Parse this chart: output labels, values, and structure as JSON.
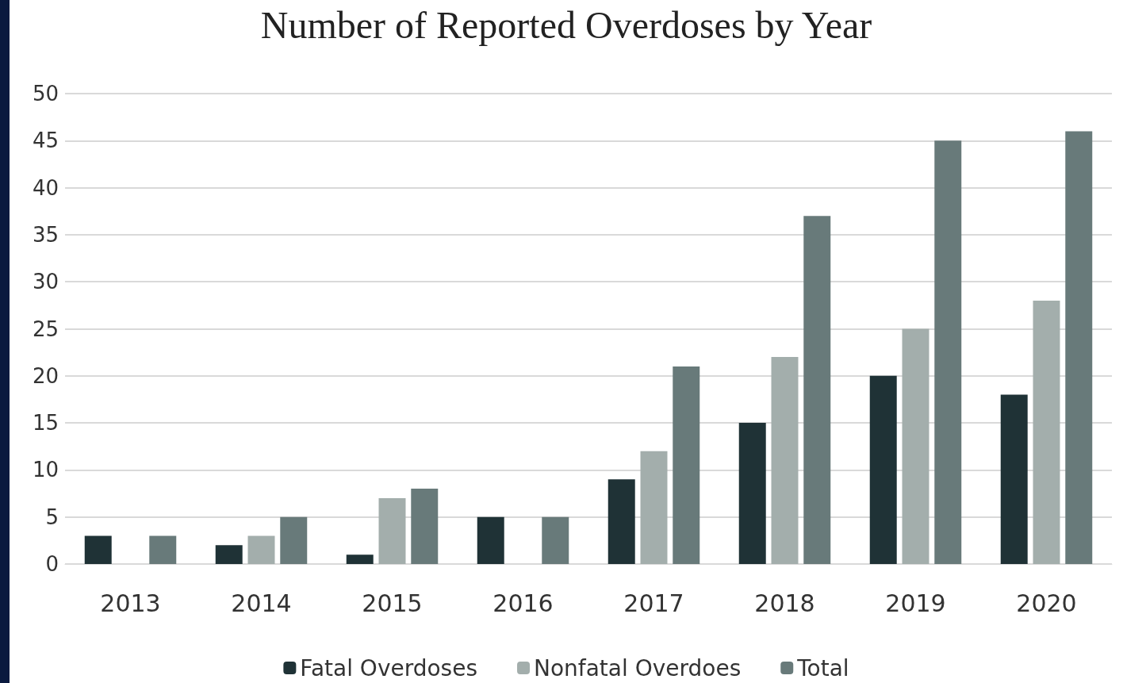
{
  "chart_data": {
    "type": "bar",
    "title": "Number of Reported Overdoses by Year",
    "categories": [
      "2013",
      "2014",
      "2015",
      "2016",
      "2017",
      "2018",
      "2019",
      "2020"
    ],
    "series": [
      {
        "name": "Fatal Overdoses",
        "color": "#1f3236",
        "values": [
          3,
          2,
          1,
          5,
          9,
          15,
          20,
          18
        ]
      },
      {
        "name": "Nonfatal Overdoes",
        "color": "#a3aeac",
        "values": [
          0,
          3,
          7,
          0,
          12,
          22,
          25,
          28
        ]
      },
      {
        "name": "Total",
        "color": "#687a7a",
        "values": [
          3,
          5,
          8,
          5,
          21,
          37,
          45,
          46
        ]
      }
    ],
    "ylim": [
      0,
      50
    ],
    "yticks": [
      0,
      5,
      10,
      15,
      20,
      25,
      30,
      35,
      40,
      45,
      50
    ],
    "grid": "y",
    "legend": "bottom"
  }
}
